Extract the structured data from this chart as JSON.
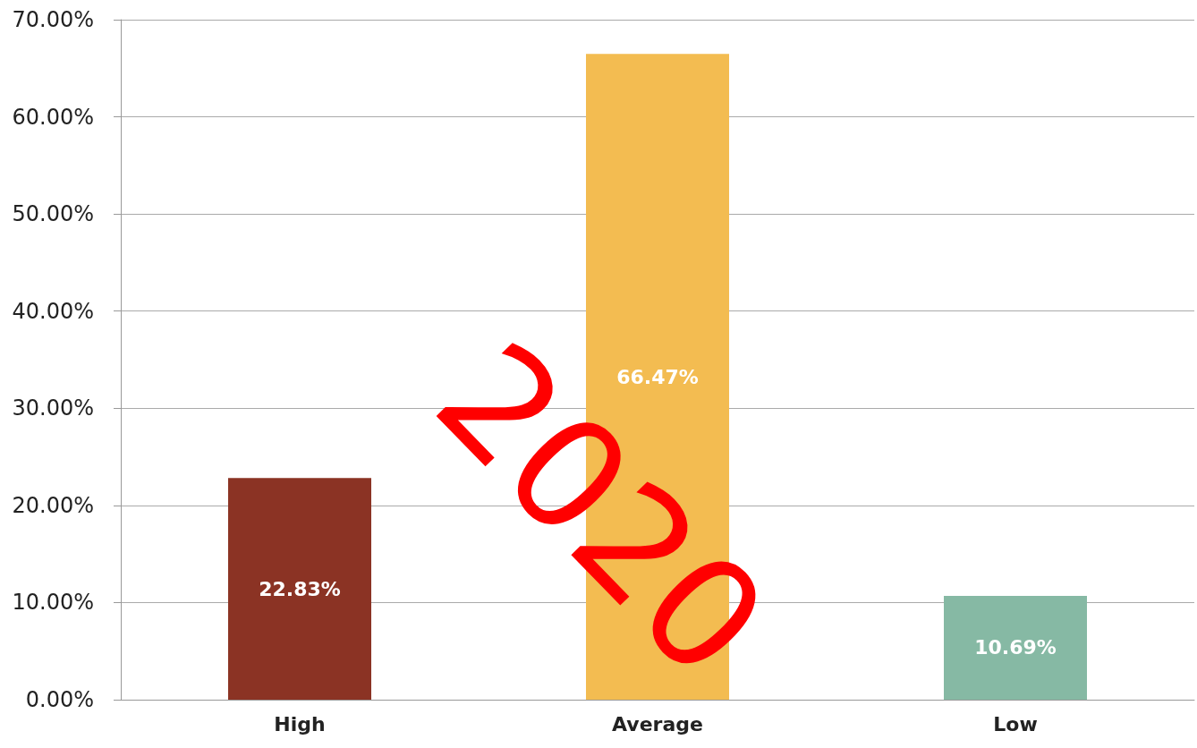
{
  "chart_data": {
    "type": "bar",
    "categories": [
      "High",
      "Average",
      "Low"
    ],
    "values": [
      22.83,
      66.47,
      10.69
    ],
    "colors": [
      "#8b3324",
      "#f3bc51",
      "#86b9a4"
    ],
    "value_labels": [
      "22.83%",
      "66.47%",
      "10.69%"
    ],
    "ylim": [
      0,
      70
    ],
    "yticks": [
      {
        "value": 0,
        "label": "0.00%"
      },
      {
        "value": 10,
        "label": "10.00%"
      },
      {
        "value": 20,
        "label": "20.00%"
      },
      {
        "value": 30,
        "label": "30.00%"
      },
      {
        "value": 40,
        "label": "40.00%"
      },
      {
        "value": 50,
        "label": "50.00%"
      },
      {
        "value": 60,
        "label": "60.00%"
      },
      {
        "value": 70,
        "label": "70.00%"
      }
    ],
    "grid": "y",
    "annotations": [
      "2020"
    ]
  }
}
